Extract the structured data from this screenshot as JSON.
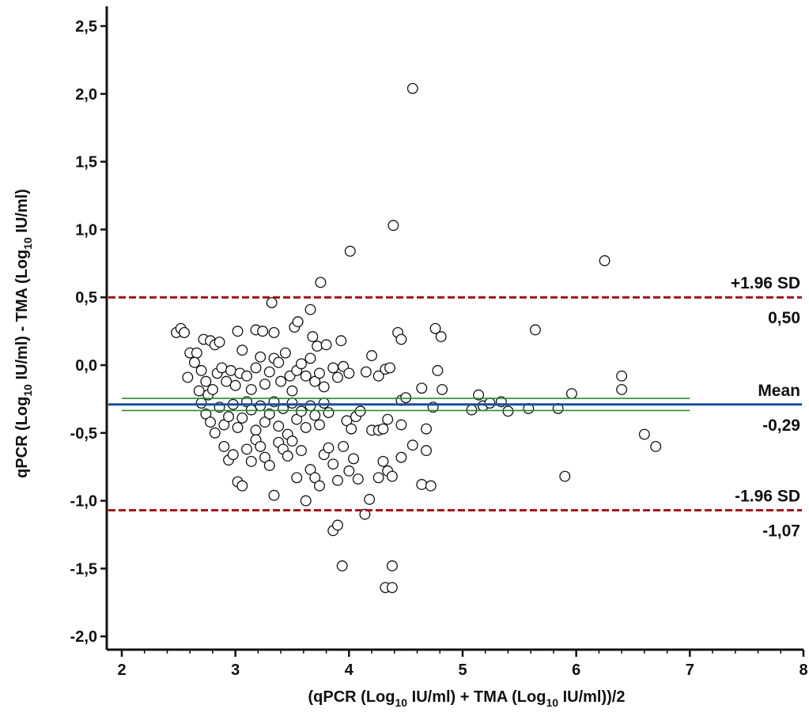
{
  "chart_data": {
    "type": "scatter",
    "title": "",
    "xlabel": {
      "pre": "(qPCR (Log",
      "sub1": "10",
      "mid": " IU/ml) + TMA (Log",
      "sub2": "10",
      "post": " IU/ml))/2"
    },
    "ylabel": {
      "pre": "qPCR (Log",
      "sub1": "10",
      "mid": " IU/ml) - TMA (Log",
      "sub2": "10",
      "post": " IU/ml)"
    },
    "xlim": [
      2,
      8
    ],
    "ylim": [
      -2.05,
      2.6
    ],
    "x_ticks": [
      2,
      3,
      4,
      5,
      6,
      7,
      8
    ],
    "x_tick_labels": [
      "2",
      "3",
      "4",
      "5",
      "6",
      "7",
      "8"
    ],
    "y_ticks": [
      2.5,
      2.0,
      1.5,
      1.0,
      0.5,
      0.0,
      -0.5,
      -1.0,
      -1.5,
      -2.0
    ],
    "y_tick_labels": [
      "2,5",
      "2,0",
      "1,5",
      "1,0",
      "0,5",
      "0,0",
      "-0,5",
      "-1,0",
      "-1,5",
      "-2,0"
    ],
    "grid": false,
    "reference_lines": [
      {
        "name": "+1.96 SD",
        "value": 0.5,
        "value_label": "0,50",
        "style": "dashed",
        "color": "#a0101a"
      },
      {
        "name": "Mean",
        "value": -0.29,
        "value_label": "-0,29",
        "style": "solid",
        "color": "#1a4f9c"
      },
      {
        "name": "-1.96 SD",
        "value": -1.07,
        "value_label": "-1,07",
        "style": "dashed",
        "color": "#a0101a"
      }
    ],
    "mean_ci": {
      "upper": -0.245,
      "lower": -0.335,
      "color": "#2a8a2a"
    },
    "marker": {
      "shape": "circle",
      "fill": "#ffffff",
      "stroke": "#111111"
    },
    "points": [
      [
        4.56,
        2.04
      ],
      [
        4.39,
        1.03
      ],
      [
        4.01,
        0.84
      ],
      [
        6.25,
        0.77
      ],
      [
        3.75,
        0.61
      ],
      [
        3.32,
        0.46
      ],
      [
        3.66,
        0.41
      ],
      [
        2.48,
        0.24
      ],
      [
        2.52,
        0.27
      ],
      [
        2.55,
        0.24
      ],
      [
        2.6,
        0.09
      ],
      [
        2.66,
        0.09
      ],
      [
        2.72,
        0.19
      ],
      [
        2.78,
        0.18
      ],
      [
        2.82,
        0.15
      ],
      [
        2.86,
        0.17
      ],
      [
        3.02,
        0.25
      ],
      [
        3.18,
        0.26
      ],
      [
        3.24,
        0.25
      ],
      [
        3.34,
        0.24
      ],
      [
        3.52,
        0.28
      ],
      [
        3.55,
        0.32
      ],
      [
        3.68,
        0.21
      ],
      [
        3.72,
        0.14
      ],
      [
        3.8,
        0.15
      ],
      [
        3.93,
        0.18
      ],
      [
        4.43,
        0.24
      ],
      [
        4.46,
        0.19
      ],
      [
        4.76,
        0.27
      ],
      [
        4.81,
        0.21
      ],
      [
        5.64,
        0.26
      ],
      [
        2.58,
        -0.09
      ],
      [
        2.64,
        0.02
      ],
      [
        2.68,
        -0.19
      ],
      [
        2.7,
        -0.04
      ],
      [
        2.74,
        -0.12
      ],
      [
        2.76,
        -0.22
      ],
      [
        2.8,
        -0.18
      ],
      [
        2.84,
        -0.06
      ],
      [
        2.88,
        -0.02
      ],
      [
        2.92,
        -0.12
      ],
      [
        2.96,
        -0.04
      ],
      [
        3.0,
        -0.15
      ],
      [
        3.04,
        -0.06
      ],
      [
        3.06,
        0.11
      ],
      [
        3.1,
        -0.08
      ],
      [
        3.14,
        -0.18
      ],
      [
        3.18,
        -0.02
      ],
      [
        3.22,
        0.06
      ],
      [
        3.26,
        -0.14
      ],
      [
        3.3,
        -0.05
      ],
      [
        3.34,
        0.05
      ],
      [
        3.38,
        0.02
      ],
      [
        3.4,
        -0.12
      ],
      [
        3.44,
        0.09
      ],
      [
        3.48,
        -0.08
      ],
      [
        3.5,
        -0.19
      ],
      [
        3.54,
        -0.04
      ],
      [
        3.58,
        0.01
      ],
      [
        3.62,
        -0.08
      ],
      [
        3.66,
        0.05
      ],
      [
        3.7,
        -0.12
      ],
      [
        3.74,
        -0.06
      ],
      [
        3.78,
        -0.16
      ],
      [
        3.86,
        -0.02
      ],
      [
        3.9,
        -0.09
      ],
      [
        3.95,
        -0.01
      ],
      [
        4.0,
        -0.06
      ],
      [
        4.15,
        -0.05
      ],
      [
        4.2,
        0.07
      ],
      [
        4.26,
        -0.08
      ],
      [
        4.32,
        -0.03
      ],
      [
        4.36,
        -0.02
      ],
      [
        4.64,
        -0.17
      ],
      [
        4.78,
        -0.04
      ],
      [
        4.82,
        -0.18
      ],
      [
        6.4,
        -0.08
      ],
      [
        6.4,
        -0.18
      ],
      [
        2.7,
        -0.28
      ],
      [
        2.74,
        -0.36
      ],
      [
        2.78,
        -0.42
      ],
      [
        2.82,
        -0.5
      ],
      [
        2.86,
        -0.31
      ],
      [
        2.9,
        -0.44
      ],
      [
        2.94,
        -0.38
      ],
      [
        2.98,
        -0.29
      ],
      [
        3.02,
        -0.46
      ],
      [
        3.06,
        -0.39
      ],
      [
        3.1,
        -0.27
      ],
      [
        3.14,
        -0.33
      ],
      [
        3.18,
        -0.48
      ],
      [
        3.22,
        -0.3
      ],
      [
        3.26,
        -0.42
      ],
      [
        3.3,
        -0.36
      ],
      [
        3.34,
        -0.27
      ],
      [
        3.38,
        -0.45
      ],
      [
        3.42,
        -0.32
      ],
      [
        3.46,
        -0.51
      ],
      [
        3.5,
        -0.28
      ],
      [
        3.54,
        -0.4
      ],
      [
        3.58,
        -0.34
      ],
      [
        3.62,
        -0.46
      ],
      [
        3.66,
        -0.3
      ],
      [
        3.7,
        -0.37
      ],
      [
        3.74,
        -0.44
      ],
      [
        3.78,
        -0.28
      ],
      [
        3.82,
        -0.35
      ],
      [
        3.98,
        -0.41
      ],
      [
        4.02,
        -0.47
      ],
      [
        4.06,
        -0.38
      ],
      [
        4.1,
        -0.34
      ],
      [
        4.2,
        -0.48
      ],
      [
        4.26,
        -0.48
      ],
      [
        4.3,
        -0.47
      ],
      [
        4.34,
        -0.4
      ],
      [
        4.46,
        -0.26
      ],
      [
        4.46,
        -0.44
      ],
      [
        4.5,
        -0.24
      ],
      [
        4.68,
        -0.47
      ],
      [
        4.74,
        -0.31
      ],
      [
        5.08,
        -0.33
      ],
      [
        5.14,
        -0.22
      ],
      [
        5.18,
        -0.3
      ],
      [
        5.24,
        -0.28
      ],
      [
        5.34,
        -0.27
      ],
      [
        5.4,
        -0.34
      ],
      [
        5.58,
        -0.32
      ],
      [
        5.84,
        -0.32
      ],
      [
        5.96,
        -0.21
      ],
      [
        2.9,
        -0.6
      ],
      [
        2.94,
        -0.7
      ],
      [
        2.98,
        -0.66
      ],
      [
        3.02,
        -0.86
      ],
      [
        3.06,
        -0.89
      ],
      [
        3.1,
        -0.62
      ],
      [
        3.14,
        -0.71
      ],
      [
        3.18,
        -0.55
      ],
      [
        3.22,
        -0.6
      ],
      [
        3.26,
        -0.68
      ],
      [
        3.3,
        -0.74
      ],
      [
        3.34,
        -0.96
      ],
      [
        3.38,
        -0.57
      ],
      [
        3.42,
        -0.62
      ],
      [
        3.46,
        -0.67
      ],
      [
        3.5,
        -0.56
      ],
      [
        3.54,
        -0.83
      ],
      [
        3.58,
        -0.63
      ],
      [
        3.62,
        -1.0
      ],
      [
        3.66,
        -0.77
      ],
      [
        3.7,
        -0.83
      ],
      [
        3.74,
        -0.89
      ],
      [
        3.78,
        -0.66
      ],
      [
        3.82,
        -0.61
      ],
      [
        3.86,
        -0.73
      ],
      [
        3.9,
        -0.85
      ],
      [
        3.95,
        -0.6
      ],
      [
        4.0,
        -0.78
      ],
      [
        4.04,
        -0.69
      ],
      [
        4.08,
        -0.84
      ],
      [
        4.14,
        -1.1
      ],
      [
        4.18,
        -0.99
      ],
      [
        4.26,
        -0.83
      ],
      [
        4.3,
        -0.71
      ],
      [
        4.34,
        -0.78
      ],
      [
        4.38,
        -0.82
      ],
      [
        4.46,
        -0.68
      ],
      [
        4.56,
        -0.59
      ],
      [
        4.64,
        -0.88
      ],
      [
        4.68,
        -0.63
      ],
      [
        4.72,
        -0.89
      ],
      [
        3.86,
        -1.22
      ],
      [
        3.9,
        -1.18
      ],
      [
        3.94,
        -1.48
      ],
      [
        4.32,
        -1.64
      ],
      [
        4.38,
        -1.64
      ],
      [
        4.38,
        -1.48
      ],
      [
        5.9,
        -0.82
      ],
      [
        6.6,
        -0.51
      ],
      [
        6.7,
        -0.6
      ]
    ]
  }
}
